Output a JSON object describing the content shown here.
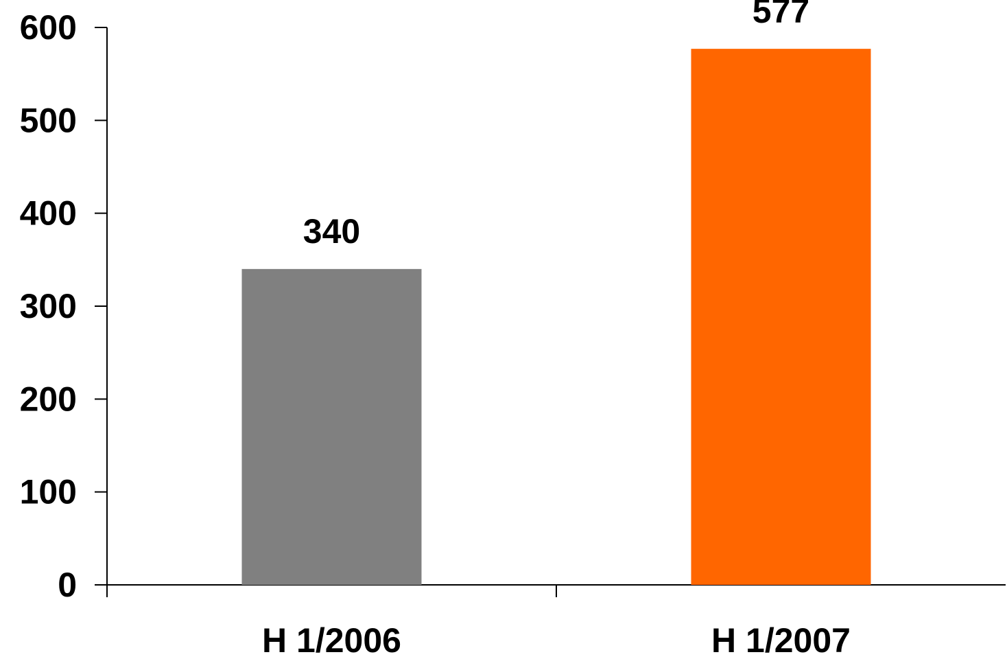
{
  "chart_data": {
    "type": "bar",
    "title": "",
    "xlabel": "",
    "ylabel": "",
    "categories": [
      "H 1/2006",
      "H 1/2007"
    ],
    "values": [
      340,
      577
    ],
    "data_labels": [
      "340",
      "577"
    ],
    "bar_colors": [
      "#808080",
      "#ff6600"
    ],
    "ylim": [
      0,
      600
    ],
    "yticks": [
      0,
      100,
      200,
      300,
      400,
      500,
      600
    ],
    "ytick_labels": [
      "0",
      "100",
      "200",
      "300",
      "400",
      "500",
      "600"
    ],
    "grid": false,
    "legend": "none"
  },
  "colors": {
    "axis": "#000000",
    "background": "#ffffff"
  }
}
